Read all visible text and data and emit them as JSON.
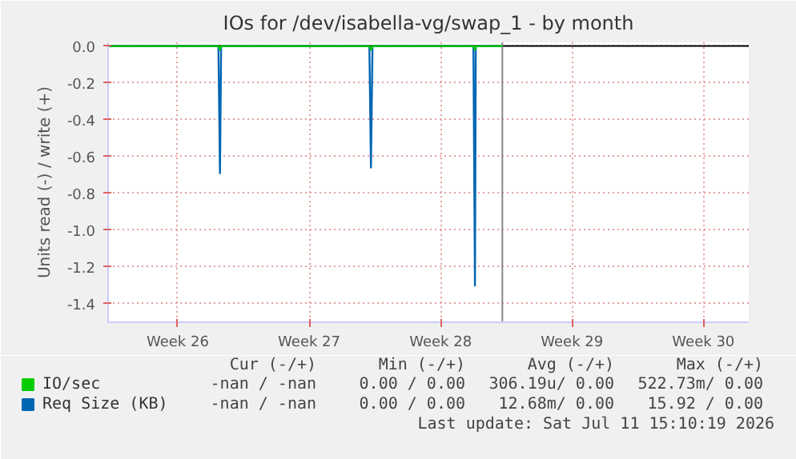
{
  "chart_data": {
    "type": "line",
    "title": "IOs for /dev/isabella-vg/swap_1 - by month",
    "ylabel": "Units read (-) / write (+)",
    "x": [
      "2026-06-21T19:00",
      "2026-06-27T16:00",
      "2026-06-27T18:00",
      "2026-06-27T19:30",
      "2026-07-05T17:00",
      "2026-07-05T19:00",
      "2026-07-05T21:00",
      "2026-07-11T06:00",
      "2026-07-11T08:00",
      "2026-07-11T09:00",
      "2026-07-12T19:00"
    ],
    "series": [
      {
        "name": "IO/sec",
        "color": "#00cc00",
        "values": [
          0,
          0,
          -0.02,
          0,
          0,
          -0.02,
          0,
          0,
          -0.02,
          0,
          0
        ]
      },
      {
        "name": "Req Size (KB)",
        "color": "#0066b3",
        "values": [
          0,
          0,
          -0.69,
          0,
          0,
          -0.66,
          0,
          0,
          -1.3,
          0,
          0
        ]
      }
    ],
    "xlim": [
      "2026-06-21T19:00",
      "2026-07-25T22:00"
    ],
    "ylim": [
      -1.5,
      0.02
    ],
    "xticks": [
      {
        "value": "2026-06-25T12:00",
        "label": "Week 26"
      },
      {
        "value": "2026-07-02T12:00",
        "label": "Week 27"
      },
      {
        "value": "2026-07-09T12:00",
        "label": "Week 28"
      },
      {
        "value": "2026-07-16T12:00",
        "label": "Week 29"
      },
      {
        "value": "2026-07-23T12:00",
        "label": "Week 30"
      }
    ],
    "yticks": [
      {
        "value": 0,
        "label": "0.0"
      },
      {
        "value": -0.2,
        "label": "-0.2"
      },
      {
        "value": -0.4,
        "label": "-0.4"
      },
      {
        "value": -0.6,
        "label": "-0.6"
      },
      {
        "value": -0.8,
        "label": "-0.8"
      },
      {
        "value": -1.0,
        "label": "-1.0"
      },
      {
        "value": -1.2,
        "label": "-1.2"
      },
      {
        "value": -1.4,
        "label": "-1.4"
      }
    ],
    "ref_lines": [
      {
        "axis": "y",
        "value": 0,
        "color": "#000000"
      },
      {
        "axis": "x",
        "value": "2026-07-12T19:00",
        "color": "#888888"
      }
    ],
    "grid": true,
    "legend": "bottom left",
    "marker": "none",
    "line_style": "solid",
    "annotations": [
      "Cur (-/+)",
      "Min (-/+)",
      "Avg (-/+)",
      "Max (-/+)",
      "-nan / -nan",
      "0.00 / 0.00",
      "306.19u/ 0.00",
      "522.73m/ 0.00",
      "-nan / -nan",
      "0.00 / 0.00",
      "12.68m/ 0.00",
      "15.92 / 0.00",
      "Last update: Sat Jul 11 15:10:19 2026"
    ]
  }
}
